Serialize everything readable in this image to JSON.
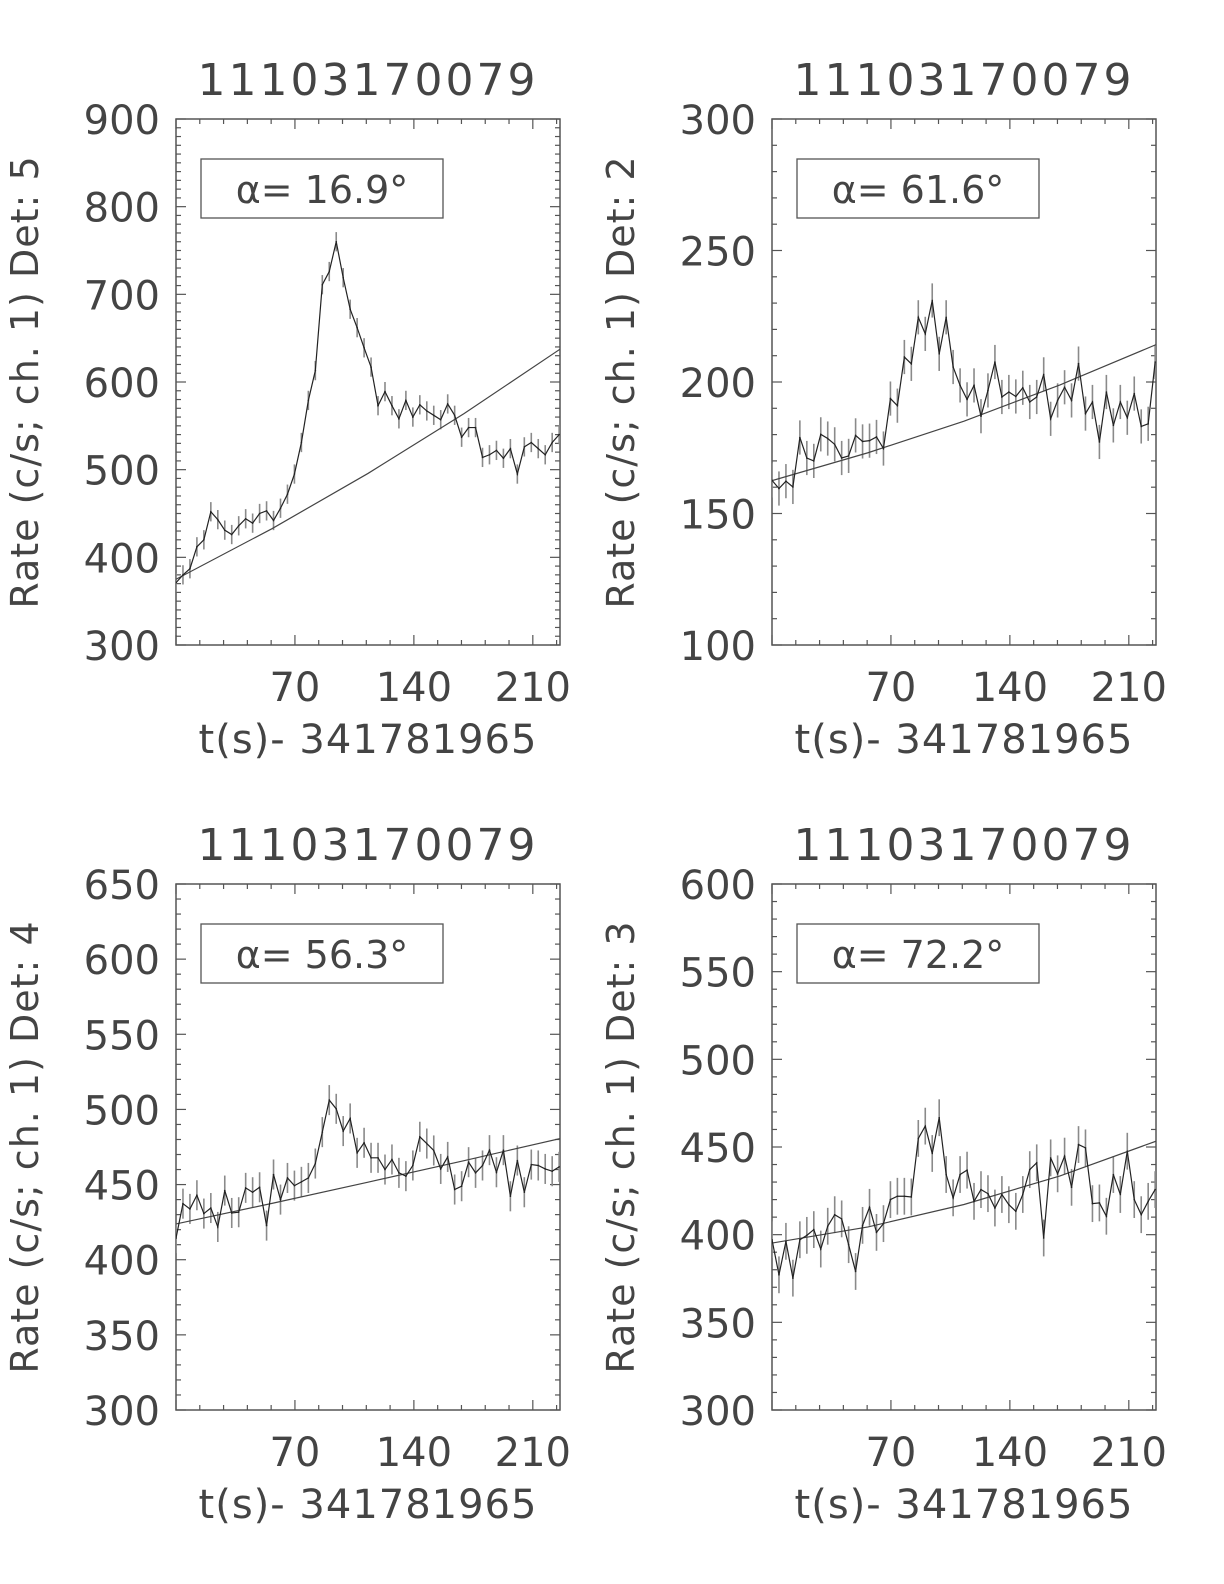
{
  "colors": {
    "data_line": "#222222",
    "error_bar": "#8a8a8a",
    "model_curve": "#444444",
    "axes": "#555555"
  },
  "chart_data": [
    {
      "type": "line",
      "title": "11103170079",
      "ylabel": "Rate (c/s; ch. 1) Det: 5",
      "xlabel": "t(s)- 341781965",
      "annotation": "α= 16.9°",
      "xlim": [
        0,
        226
      ],
      "ylim": [
        300,
        900
      ],
      "xticks": [
        70,
        140,
        210
      ],
      "yticks": [
        300,
        400,
        500,
        600,
        700,
        800,
        900
      ],
      "x_step": 4.1,
      "values": [
        371,
        380,
        387,
        412,
        420,
        452,
        443,
        431,
        426,
        436,
        444,
        439,
        450,
        453,
        442,
        456,
        472,
        495,
        531,
        579,
        613,
        711,
        726,
        760,
        719,
        683,
        662,
        639,
        617,
        573,
        589,
        573,
        558,
        579,
        560,
        574,
        567,
        562,
        557,
        575,
        562,
        537,
        548,
        548,
        514,
        517,
        522,
        513,
        524,
        495,
        526,
        531,
        524,
        517,
        531,
        540
      ],
      "error": 11,
      "model": {
        "x": [
          0,
          56.5,
          113,
          169.5,
          226
        ],
        "y": [
          375,
          432.7,
          495.7,
          563.9,
          637.4
        ]
      }
    },
    {
      "type": "line",
      "title": "11103170079",
      "ylabel": "Rate (c/s; ch. 1) Det: 2",
      "xlabel": "t(s)- 341781965",
      "annotation": "α= 61.6°",
      "xlim": [
        0,
        226
      ],
      "ylim": [
        100,
        300
      ],
      "xticks": [
        70,
        140,
        210
      ],
      "yticks": [
        100,
        150,
        200,
        250,
        300
      ],
      "x_step": 4.1,
      "values": [
        162.6,
        159.5,
        162.3,
        160.1,
        178.9,
        171.1,
        170,
        180.1,
        178.5,
        176.3,
        171.1,
        171.9,
        179.7,
        177.4,
        177.7,
        179.1,
        174.7,
        193.7,
        191,
        209.5,
        206.9,
        224.6,
        218.3,
        231,
        210.7,
        224.6,
        205.7,
        198.7,
        193.4,
        198.7,
        187,
        196.8,
        207.6,
        194.3,
        196.2,
        194.5,
        197.8,
        192.4,
        194.3,
        202.9,
        186,
        193,
        198,
        193,
        207,
        188,
        192.4,
        177.2,
        196.2,
        183.5,
        192.4,
        186.4,
        195.6,
        183.1,
        184.1,
        207.6
      ],
      "error": 6.5,
      "model": {
        "x": [
          0,
          56.5,
          113,
          169.5,
          226
        ],
        "y": [
          162.5,
          173.1,
          185.1,
          198.9,
          214.2
        ]
      }
    },
    {
      "type": "line",
      "title": "11103170079",
      "ylabel": "Rate (c/s; ch. 1) Det: 4",
      "xlabel": "t(s)- 341781965",
      "annotation": "α= 56.3°",
      "xlim": [
        0,
        226
      ],
      "ylim": [
        300,
        650
      ],
      "xticks": [
        70,
        140,
        210
      ],
      "yticks": [
        300,
        350,
        400,
        450,
        500,
        550,
        600,
        650
      ],
      "x_step": 4.1,
      "values": [
        414.4,
        437.3,
        433.8,
        442.9,
        430.7,
        434.4,
        421.8,
        446,
        431.1,
        431.6,
        447.8,
        444.9,
        448.2,
        422.7,
        456.7,
        440,
        454.4,
        449.3,
        451.8,
        454.4,
        464,
        484.9,
        506.2,
        500.4,
        485.6,
        494,
        471.1,
        477.8,
        467.8,
        467.8,
        460,
        466.7,
        457.8,
        455.6,
        462.7,
        481.8,
        477.3,
        472.7,
        460.4,
        468.4,
        446.7,
        448.9,
        464.9,
        457.8,
        462.7,
        472.9,
        458.2,
        472.9,
        442.2,
        466,
        444.9,
        463.3,
        462.7,
        460.4,
        458.9,
        461.8
      ],
      "error": 10,
      "model": {
        "x": [
          0,
          56.5,
          113,
          169.5,
          226
        ],
        "y": [
          423.8,
          437.5,
          451.6,
          465.9,
          480.6
        ]
      }
    },
    {
      "type": "line",
      "title": "11103170079",
      "ylabel": "Rate (c/s; ch. 1) Det: 3",
      "xlabel": "t(s)- 341781965",
      "annotation": "α= 72.2°",
      "xlim": [
        0,
        226
      ],
      "ylim": [
        300,
        600
      ],
      "xticks": [
        70,
        140,
        210
      ],
      "yticks": [
        300,
        350,
        400,
        450,
        500,
        550,
        600
      ],
      "x_step": 4.1,
      "values": [
        397.1,
        377.1,
        396.2,
        375.2,
        397.1,
        399.6,
        402.9,
        391.8,
        404.8,
        411.4,
        409,
        394.3,
        379,
        405.3,
        415.6,
        401.3,
        406.3,
        420,
        421.9,
        421.9,
        421.5,
        454.9,
        461.9,
        446.3,
        466.7,
        434.3,
        421,
        434.3,
        436.8,
        419,
        425.7,
        423.4,
        415.2,
        422.9,
        417.1,
        413.3,
        422.9,
        437.1,
        441,
        398.1,
        443.8,
        434.7,
        444.8,
        427,
        451.4,
        449.5,
        417.7,
        418.1,
        410.5,
        434.3,
        422.9,
        447.6,
        420,
        411.4,
        419,
        425.7
      ],
      "error": 10.5,
      "model": {
        "x": [
          0,
          56.5,
          113,
          169.5,
          226
        ],
        "y": [
          395.2,
          404.4,
          417.2,
          433.5,
          453.3
        ]
      }
    }
  ]
}
